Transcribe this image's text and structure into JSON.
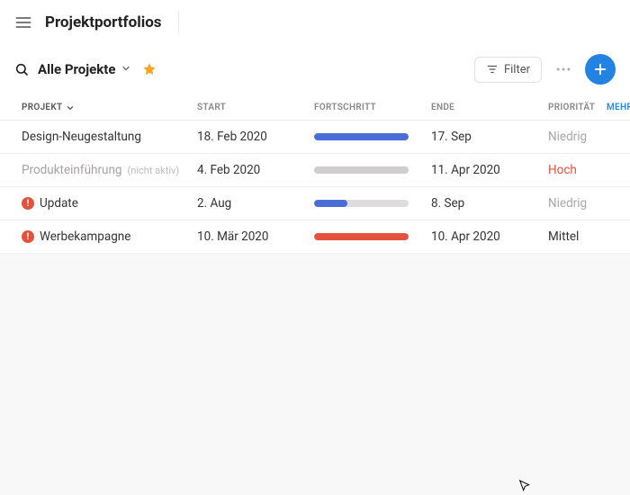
{
  "header": {
    "title": "Projektportfolios"
  },
  "toolbar": {
    "view_title": "Alle Projekte",
    "filter_label": "Filter"
  },
  "colors": {
    "add_button": "#2383e2",
    "star": "#f5a623",
    "alert": "#e4523d",
    "link": "#1e87f0"
  },
  "table": {
    "headers": {
      "project": "PROJEKT",
      "start": "START",
      "progress": "FORTSCHRITT",
      "end": "ENDE",
      "priority": "PRIORITÄT",
      "more": "MEHR"
    },
    "rows": [
      {
        "name": "Design-Neugestaltung",
        "inactive_label": "",
        "alert": false,
        "start": "18. Feb 2020",
        "end": "17. Sep",
        "progress_pct": 100,
        "progress_color": "#4a6dd8",
        "priority_label": "Niedrig",
        "priority_class": "prio-low"
      },
      {
        "name": "Produkteinführung",
        "inactive_label": "(nicht aktiv)",
        "alert": false,
        "start": "4. Feb 2020",
        "end": "11. Apr 2020",
        "progress_pct": 100,
        "progress_color": "#cfcdcd",
        "priority_label": "Hoch",
        "priority_class": "prio-high"
      },
      {
        "name": "Update",
        "inactive_label": "",
        "alert": true,
        "start": "2. Aug",
        "end": "8. Sep",
        "progress_pct": 35,
        "progress_color": "#4a6dd8",
        "priority_label": "Niedrig",
        "priority_class": "prio-low"
      },
      {
        "name": "Werbekampagne",
        "inactive_label": "",
        "alert": true,
        "start": "10. Mär 2020",
        "end": "10. Apr 2020",
        "progress_pct": 100,
        "progress_color": "#e4523d",
        "priority_label": "Mittel",
        "priority_class": "prio-mid"
      }
    ]
  }
}
